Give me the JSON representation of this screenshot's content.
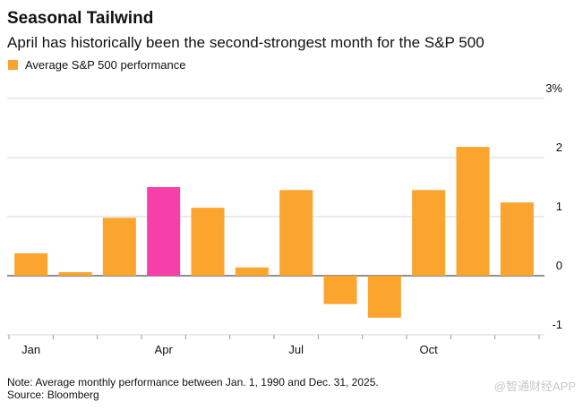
{
  "title": "Seasonal Tailwind",
  "subtitle": "April has historically been the second-strongest month for the S&P 500",
  "note": "Note: Average monthly performance between Jan. 1, 1990 and Dec. 31, 2025.",
  "source": "Source: Bloomberg",
  "watermark": "@智通财经APP",
  "chart_data": {
    "type": "bar",
    "categories": [
      "Jan",
      null,
      null,
      "Apr",
      null,
      null,
      "Jul",
      null,
      null,
      "Oct",
      null,
      null
    ],
    "series": [
      {
        "name": "Average S&P 500 performance",
        "color": "#fba42e",
        "colors": [
          "#fba42e",
          "#fba42e",
          "#fba42e",
          "#f73fa9",
          "#fba42e",
          "#fba42e",
          "#fba42e",
          "#fba42e",
          "#fba42e",
          "#fba42e",
          "#fba42e",
          "#fba42e"
        ],
        "values": [
          0.38,
          0.06,
          0.98,
          1.5,
          1.15,
          0.14,
          1.45,
          -0.48,
          -0.71,
          1.45,
          2.18,
          1.24
        ]
      }
    ],
    "ylim": [
      -1,
      3
    ],
    "yticks": [
      -1,
      0,
      1,
      2,
      {
        "value": 3,
        "label": "3%"
      }
    ],
    "grid": true
  }
}
